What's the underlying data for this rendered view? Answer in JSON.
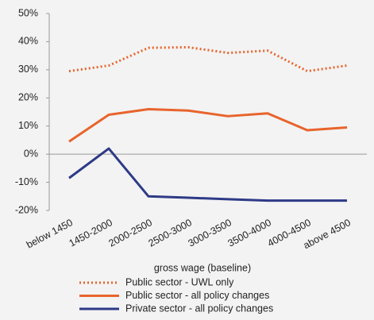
{
  "chart_data": {
    "type": "line",
    "x_label": "gross wage  (baseline)",
    "categories": [
      "below 1450",
      "1450-2000",
      "2000-2500",
      "2500-3000",
      "3000-3500",
      "3500-4000",
      "4000-4500",
      "above 4500"
    ],
    "series": [
      {
        "name": "Public sector  - UWL only",
        "color": "#e8642c",
        "style": "dotted",
        "values": [
          29.5,
          31.5,
          37.8,
          38,
          36,
          36.8,
          29.5,
          31.5
        ]
      },
      {
        "name": "Public sector  - all policy changes",
        "color": "#e8642c",
        "style": "solid",
        "values": [
          4.5,
          14,
          16,
          15.5,
          13.5,
          14.5,
          8.5,
          9.5
        ]
      },
      {
        "name": "Private sector - all policy changes",
        "color": "#2e3a87",
        "style": "solid",
        "values": [
          -8.5,
          2,
          -15,
          -15.5,
          -16,
          -16.5,
          -16.5,
          -16.5
        ]
      }
    ],
    "ylim": [
      -20,
      50
    ],
    "yticks": [
      {
        "value": -20,
        "label": "-20%"
      },
      {
        "value": -10,
        "label": "-10%"
      },
      {
        "value": 0,
        "label": "0%"
      },
      {
        "value": 10,
        "label": "10%"
      },
      {
        "value": 20,
        "label": "20%"
      },
      {
        "value": 30,
        "label": "30%"
      },
      {
        "value": 40,
        "label": "40%"
      },
      {
        "value": 50,
        "label": "50%"
      }
    ],
    "grid": false
  }
}
